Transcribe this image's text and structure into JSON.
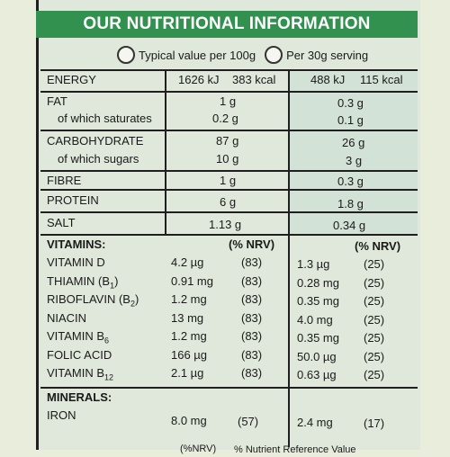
{
  "title": "OUR NUTRITIONAL INFORMATION",
  "legend": {
    "per100": "Typical value per 100g",
    "per30": "Per 30g serving"
  },
  "energy": {
    "label": "ENERGY",
    "kj100": "1626 kJ",
    "kcal100": "383 kcal",
    "kj30": "488 kJ",
    "kcal30": "115 kcal"
  },
  "fat": {
    "label": "FAT",
    "v100": "1 g",
    "v30": "0.3 g"
  },
  "saturates": {
    "label": "of which saturates",
    "v100": "0.2 g",
    "v30": "0.1 g"
  },
  "carbs": {
    "label": "CARBOHYDRATE",
    "v100": "87 g",
    "v30": "26 g"
  },
  "sugars": {
    "label": "of which sugars",
    "v100": "10 g",
    "v30": "3 g"
  },
  "fibre": {
    "label": "FIBRE",
    "v100": "1 g",
    "v30": "0.3 g"
  },
  "protein": {
    "label": "PROTEIN",
    "v100": "6 g",
    "v30": "1.8 g"
  },
  "salt": {
    "label": "SALT",
    "v100": "1.13 g",
    "v30": "0.34 g"
  },
  "vitamins": {
    "label": "VITAMINS:",
    "nrv_header": "(% NRV)"
  },
  "vitamin_rows": [
    {
      "name": "VITAMIN D",
      "sub": "",
      "v100": "4.2 µg",
      "n100": "(83)",
      "v30": "1.3 µg",
      "n30": "(25)"
    },
    {
      "name": "THIAMIN (B",
      "sub": "1",
      "suffix": ")",
      "v100": "0.91 mg",
      "n100": "(83)",
      "v30": "0.28 mg",
      "n30": "(25)"
    },
    {
      "name": "RIBOFLAVIN (B",
      "sub": "2",
      "suffix": ")",
      "v100": "1.2 mg",
      "n100": "(83)",
      "v30": "0.35 mg",
      "n30": "(25)"
    },
    {
      "name": "NIACIN",
      "sub": "",
      "v100": "13 mg",
      "n100": "(83)",
      "v30": "4.0 mg",
      "n30": "(25)"
    },
    {
      "name": "VITAMIN B",
      "sub": "6",
      "v100": "1.2 mg",
      "n100": "(83)",
      "v30": "0.35 mg",
      "n30": "(25)"
    },
    {
      "name": "FOLIC ACID",
      "sub": "",
      "v100": "166 µg",
      "n100": "(83)",
      "v30": "50.0 µg",
      "n30": "(25)"
    },
    {
      "name": "VITAMIN B",
      "sub": "12",
      "v100": "2.1 µg",
      "n100": "(83)",
      "v30": "0.63 µg",
      "n30": "(25)"
    }
  ],
  "minerals": {
    "label": "MINERALS:"
  },
  "iron": {
    "label": "IRON",
    "v100": "8.0 mg",
    "n100": "(57)",
    "v30": "2.4 mg",
    "n30": "(17)"
  },
  "footer": {
    "nrv": "(%NRV)",
    "note": "% Nutrient Reference Value"
  },
  "colors": {
    "header_green": "#33914f",
    "panel": "#dfe8da"
  }
}
